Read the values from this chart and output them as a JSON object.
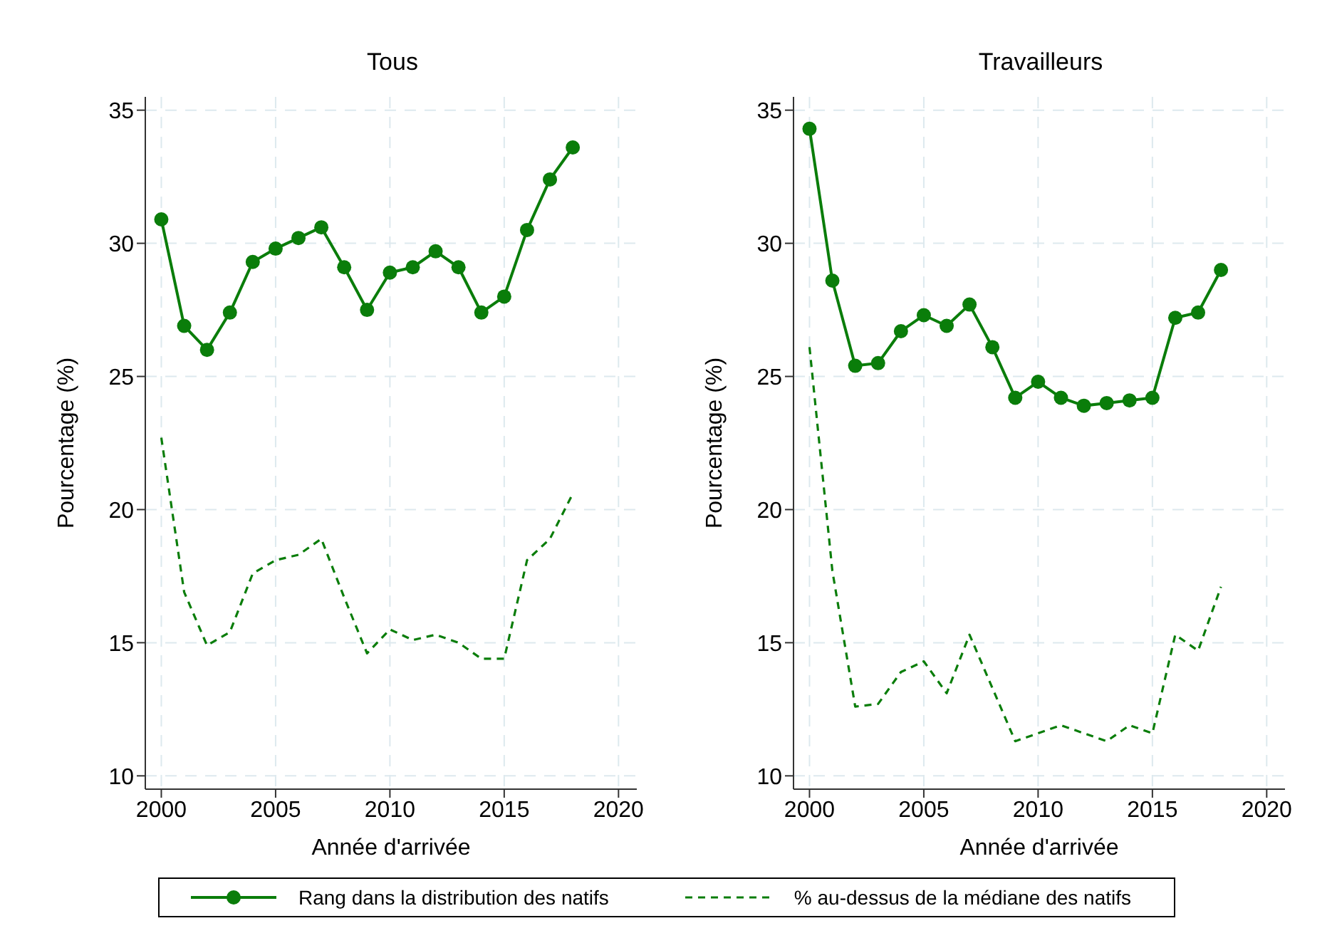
{
  "chart_data": [
    {
      "type": "line",
      "title": "Tous",
      "xlabel": "Année d'arrivée",
      "ylabel": "Pourcentage (%)",
      "x": [
        2000,
        2001,
        2002,
        2003,
        2004,
        2005,
        2006,
        2007,
        2008,
        2009,
        2010,
        2011,
        2012,
        2013,
        2014,
        2015,
        2016,
        2017,
        2018
      ],
      "series": [
        {
          "name": "Rang dans la distribution des natifs",
          "color": "#0a7d0a",
          "marker": "circle",
          "line_style": "solid",
          "values": [
            30.9,
            26.9,
            26.0,
            27.4,
            29.3,
            29.8,
            30.2,
            30.6,
            29.1,
            27.5,
            28.9,
            29.1,
            29.7,
            29.1,
            27.4,
            28.0,
            30.5,
            32.4,
            33.6
          ]
        },
        {
          "name": "% au-dessus de la médiane des natifs",
          "color": "#0a7d0a",
          "marker": "none",
          "line_style": "dashed",
          "values": [
            22.7,
            16.9,
            14.9,
            15.4,
            17.6,
            18.1,
            18.3,
            18.9,
            16.7,
            14.6,
            15.5,
            15.1,
            15.3,
            15.0,
            14.4,
            14.4,
            18.1,
            18.9,
            20.6
          ]
        }
      ],
      "xlim": [
        1999.3,
        2020.8
      ],
      "xticks": [
        2000,
        2005,
        2010,
        2015,
        2020
      ],
      "ylim": [
        9.5,
        35.5
      ],
      "yticks": [
        10,
        15,
        20,
        25,
        30,
        35
      ],
      "grid": true,
      "legend": "bottom"
    },
    {
      "type": "line",
      "title": "Travailleurs",
      "xlabel": "Année d'arrivée",
      "ylabel": "Pourcentage (%)",
      "x": [
        2000,
        2001,
        2002,
        2003,
        2004,
        2005,
        2006,
        2007,
        2008,
        2009,
        2010,
        2011,
        2012,
        2013,
        2014,
        2015,
        2016,
        2017,
        2018
      ],
      "series": [
        {
          "color": "#0a7d0a",
          "marker": "circle",
          "line_style": "solid",
          "values": [
            34.3,
            28.6,
            25.4,
            25.5,
            26.7,
            27.3,
            26.9,
            27.7,
            26.1,
            24.2,
            24.8,
            24.2,
            23.9,
            24.0,
            24.1,
            24.2,
            27.2,
            27.4,
            29.0
          ]
        },
        {
          "color": "#0a7d0a",
          "marker": "none",
          "line_style": "dashed",
          "values": [
            26.1,
            17.7,
            12.6,
            12.7,
            13.9,
            14.3,
            13.1,
            15.3,
            13.3,
            11.3,
            11.6,
            11.9,
            11.6,
            11.3,
            11.9,
            11.6,
            15.3,
            14.7,
            17.1
          ]
        }
      ],
      "xlim": [
        1999.3,
        2020.8
      ],
      "xticks": [
        2000,
        2005,
        2010,
        2015,
        2020
      ],
      "ylim": [
        9.5,
        35.5
      ],
      "yticks": [
        10,
        15,
        20,
        25,
        30,
        35
      ],
      "grid": true
    }
  ]
}
